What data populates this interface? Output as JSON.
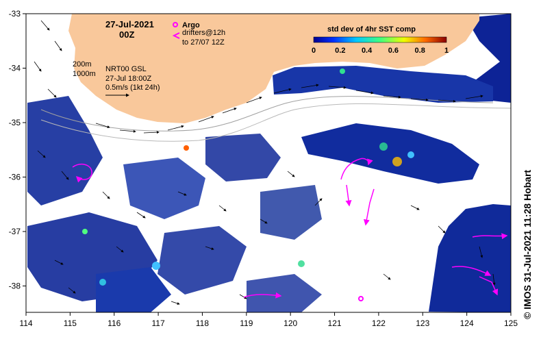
{
  "map": {
    "date": "27-Jul-2021",
    "time": "00Z",
    "argo_label": "Argo",
    "drifters_line1": "drifters@12h",
    "drifters_line2": "to 27/07 12Z",
    "depth_200": "200m",
    "depth_1000": "1000m",
    "source_line1": "NRT00 GSL",
    "source_line2": "27-Jul 18:00Z",
    "source_line3": "0.5m/s (1kt 24h)",
    "colorbar_title": "std dev of 4hr SST comp",
    "colorbar_ticks": [
      "0",
      "0.2",
      "0.4",
      "0.6",
      "0.8",
      "1"
    ],
    "credit": "© IMOS 31-Jul-2021 11:28 Hobart",
    "x_ticks": [
      "114",
      "115",
      "116",
      "117",
      "118",
      "119",
      "120",
      "121",
      "122",
      "123",
      "124",
      "125"
    ],
    "y_ticks": [
      "-33",
      "-34",
      "-35",
      "-36",
      "-37",
      "-38"
    ]
  },
  "colors": {
    "land": "#f9c89b",
    "deep_blue": "#0a1a8c",
    "drifter": "#ff00ff",
    "isobath": "#a0a0a0"
  }
}
